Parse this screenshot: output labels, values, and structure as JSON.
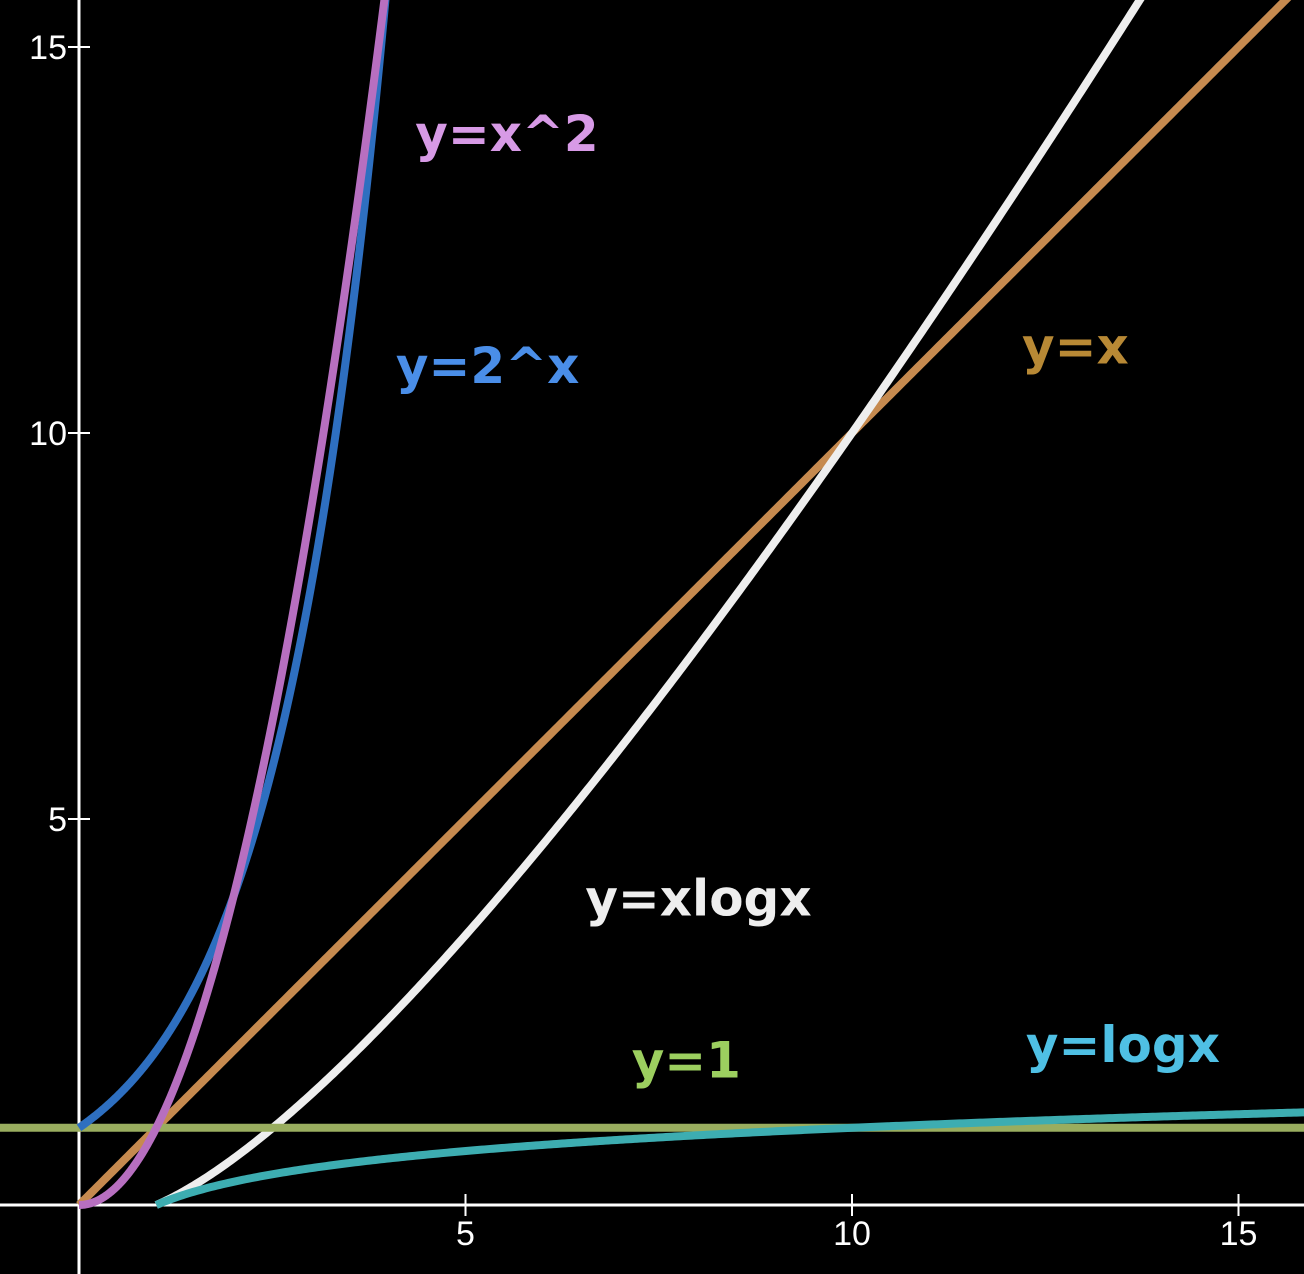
{
  "chart_data": {
    "type": "line",
    "xlim": [
      -2,
      15.9
    ],
    "ylim": [
      -1.8,
      15.6
    ],
    "grid": false,
    "background": "#000000",
    "axis_color": "#ffffff",
    "x_ticks": [
      {
        "value": 5,
        "label": "5"
      },
      {
        "value": 10,
        "label": "10"
      },
      {
        "value": 15,
        "label": "15"
      }
    ],
    "y_ticks": [
      {
        "value": 5,
        "label": "5"
      },
      {
        "value": 10,
        "label": "10"
      },
      {
        "value": 15,
        "label": "15"
      }
    ],
    "series": [
      {
        "key": "pow2",
        "name": "y=2^x",
        "expr": "2^x",
        "color": "#2e6fc0",
        "label_color": "#4a8ee8",
        "label_x": 4.1,
        "label_y": 10.65,
        "x_start": 0,
        "x_end": 4.0
      },
      {
        "key": "square",
        "name": "y=x^2",
        "expr": "x^2",
        "color": "#b76fc0",
        "label_color": "#d79ae6",
        "label_x": 4.35,
        "label_y": 13.65,
        "x_start": 0,
        "x_end": 4.0
      },
      {
        "key": "xlogx",
        "name": "y=xlogx",
        "expr": "x*log10(x)",
        "color": "#eeeeee",
        "label_color": "#eeeeee",
        "label_x": 6.55,
        "label_y": 3.75,
        "x_start": 1,
        "x_end": 13.9
      },
      {
        "key": "linear",
        "name": "y=x",
        "expr": "x",
        "color": "#c68a4f",
        "label_color": "#b88935",
        "label_x": 12.2,
        "label_y": 10.9,
        "x_start": 0,
        "x_end": 15.9
      },
      {
        "key": "logx",
        "name": "y=logx",
        "expr": "log10(x)",
        "color": "#3dadb1",
        "label_color": "#4fc0e4",
        "label_x": 12.25,
        "label_y": 1.85,
        "x_start": 1,
        "x_end": 15.9
      },
      {
        "key": "const",
        "name": "y=1",
        "expr": "1",
        "color": "#99ad5f",
        "label_color": "#9ccf5f",
        "label_x": 7.15,
        "label_y": 1.65,
        "x_start": -2,
        "x_end": 15.9
      }
    ]
  }
}
